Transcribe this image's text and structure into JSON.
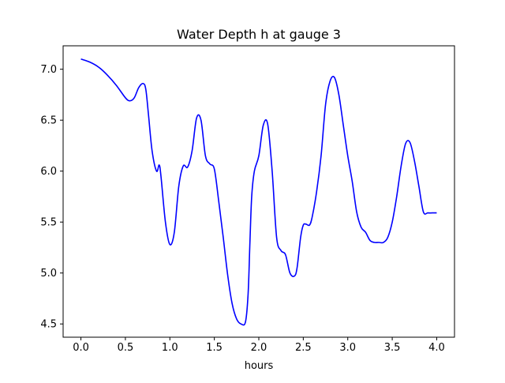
{
  "chart_data": {
    "type": "line",
    "title": "Water Depth h at gauge 3",
    "xlabel": "hours",
    "ylabel": "",
    "xlim": [
      -0.2,
      4.2
    ],
    "ylim": [
      4.37,
      7.23
    ],
    "x_ticks": [
      0.0,
      0.5,
      1.0,
      1.5,
      2.0,
      2.5,
      3.0,
      3.5,
      4.0
    ],
    "x_tick_labels": [
      "0.0",
      "0.5",
      "1.0",
      "1.5",
      "2.0",
      "2.5",
      "3.0",
      "3.5",
      "4.0"
    ],
    "y_ticks": [
      4.5,
      5.0,
      5.5,
      6.0,
      6.5,
      7.0
    ],
    "y_tick_labels": [
      "4.5",
      "5.0",
      "5.5",
      "6.0",
      "6.5",
      "7.0"
    ],
    "grid": false,
    "legend": "none",
    "series": [
      {
        "color": "#0000ff",
        "x": [
          0.0,
          0.1,
          0.2,
          0.3,
          0.4,
          0.5,
          0.55,
          0.6,
          0.65,
          0.7,
          0.73,
          0.76,
          0.8,
          0.85,
          0.88,
          0.9,
          0.95,
          1.0,
          1.05,
          1.1,
          1.15,
          1.2,
          1.25,
          1.3,
          1.35,
          1.4,
          1.45,
          1.5,
          1.55,
          1.6,
          1.65,
          1.7,
          1.75,
          1.8,
          1.85,
          1.88,
          1.9,
          1.92,
          1.95,
          2.0,
          2.05,
          2.1,
          2.15,
          2.2,
          2.25,
          2.3,
          2.35,
          2.4,
          2.43,
          2.47,
          2.5,
          2.53,
          2.57,
          2.6,
          2.65,
          2.7,
          2.75,
          2.8,
          2.85,
          2.9,
          2.95,
          3.0,
          3.05,
          3.1,
          3.15,
          3.2,
          3.25,
          3.3,
          3.35,
          3.4,
          3.45,
          3.5,
          3.55,
          3.6,
          3.65,
          3.7,
          3.75,
          3.8,
          3.85,
          3.9,
          3.95,
          4.0
        ],
        "y": [
          7.1,
          7.07,
          7.02,
          6.94,
          6.84,
          6.72,
          6.69,
          6.72,
          6.82,
          6.86,
          6.8,
          6.55,
          6.2,
          6.0,
          6.06,
          5.95,
          5.5,
          5.28,
          5.4,
          5.85,
          6.05,
          6.04,
          6.2,
          6.52,
          6.5,
          6.15,
          6.07,
          6.02,
          5.7,
          5.35,
          4.98,
          4.7,
          4.55,
          4.5,
          4.52,
          4.8,
          5.3,
          5.75,
          6.0,
          6.15,
          6.45,
          6.46,
          6.0,
          5.35,
          5.22,
          5.18,
          5.0,
          4.97,
          5.05,
          5.35,
          5.47,
          5.48,
          5.47,
          5.55,
          5.8,
          6.15,
          6.65,
          6.88,
          6.92,
          6.75,
          6.45,
          6.15,
          5.9,
          5.6,
          5.45,
          5.4,
          5.32,
          5.3,
          5.3,
          5.3,
          5.35,
          5.5,
          5.75,
          6.05,
          6.27,
          6.28,
          6.1,
          5.85,
          5.6,
          5.59,
          5.59,
          5.59
        ]
      }
    ]
  }
}
